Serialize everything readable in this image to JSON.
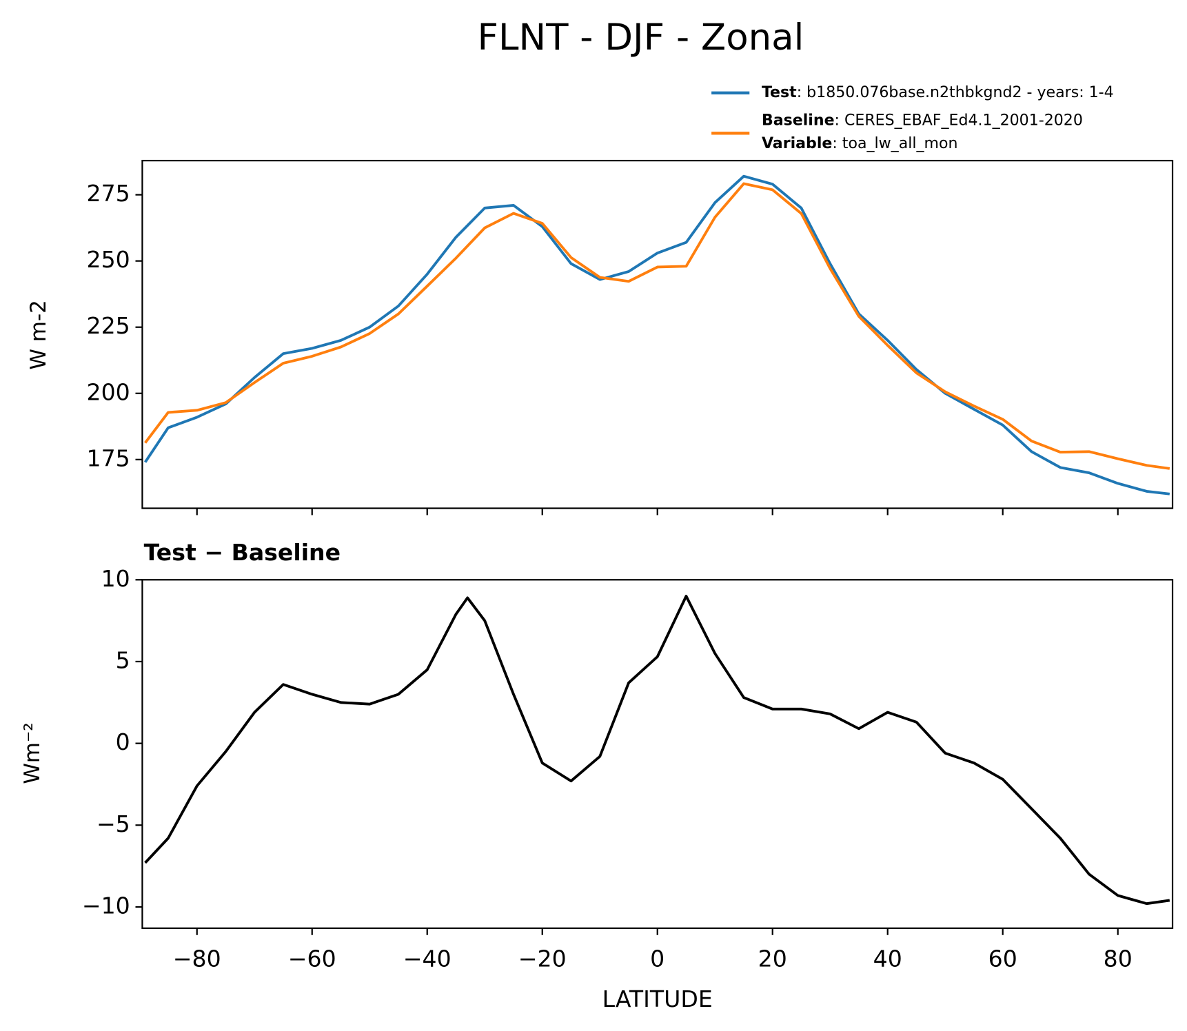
{
  "chart_data": [
    {
      "type": "line",
      "title": "FLNT - DJF - Zonal",
      "ylabel": "W m-2",
      "x": [
        -89,
        -85,
        -80,
        -75,
        -70,
        -65,
        -60,
        -55,
        -50,
        -45,
        -40,
        -35,
        -30,
        -25,
        -20,
        -15,
        -10,
        -5,
        0,
        5,
        10,
        15,
        20,
        25,
        30,
        35,
        40,
        45,
        50,
        55,
        60,
        65,
        70,
        75,
        80,
        85,
        89
      ],
      "series": [
        {
          "name": "Test",
          "legend_text": ": b1850.076base.n2thbkgnd2 - years: 1-4",
          "color": "#1f77b4",
          "values": [
            174,
            187,
            191,
            196,
            206,
            215,
            217,
            220,
            225,
            233,
            245,
            259,
            270,
            271,
            263,
            249,
            243,
            246,
            253,
            257,
            272,
            282,
            279,
            270,
            249,
            230,
            220,
            209,
            200,
            194,
            188,
            178,
            172,
            170,
            166,
            163,
            162
          ]
        },
        {
          "name": "Baseline",
          "legend_text": ": CERES_EBAF_Ed4.1_2001-2020",
          "legend_extra_label": "Variable",
          "legend_extra_text": ": toa_lw_all_mon",
          "color": "#ff7f0e",
          "values": [
            181.3,
            192.8,
            193.6,
            196.5,
            204.1,
            211.4,
            214,
            217.5,
            222.6,
            230,
            240.5,
            251.1,
            262.5,
            268,
            264.2,
            251.3,
            243.8,
            242.3,
            247.7,
            248,
            266.5,
            279.2,
            276.9,
            267.9,
            247.2,
            229.1,
            218.1,
            207.7,
            200.6,
            195.2,
            190.2,
            182,
            177.8,
            178,
            175.3,
            172.8,
            171.6
          ]
        }
      ],
      "xlim": [
        -89.5,
        89.5
      ],
      "xticks": [
        -80,
        -60,
        -40,
        -20,
        0,
        20,
        40,
        60,
        80
      ],
      "ylim": [
        156.6,
        287.9
      ],
      "yticks": [
        175,
        200,
        225,
        250,
        275
      ]
    },
    {
      "type": "line",
      "title": "Test − Baseline",
      "ylabel": "Wm⁻²",
      "xlabel": "LATITUDE",
      "color": "#000000",
      "x": [
        -89,
        -85,
        -80,
        -75,
        -70,
        -65,
        -60,
        -55,
        -50,
        -45,
        -40,
        -35,
        -33,
        -30,
        -25,
        -20,
        -15,
        -10,
        -5,
        0,
        5,
        10,
        15,
        20,
        25,
        30,
        35,
        40,
        45,
        50,
        55,
        60,
        65,
        70,
        75,
        80,
        85,
        89
      ],
      "values": [
        -7.3,
        -5.8,
        -2.6,
        -0.5,
        1.9,
        3.6,
        3.0,
        2.5,
        2.4,
        3.0,
        4.5,
        7.9,
        8.9,
        7.5,
        3.0,
        -1.2,
        -2.3,
        -0.8,
        3.7,
        5.3,
        9.0,
        5.5,
        2.8,
        2.1,
        2.1,
        1.8,
        0.9,
        1.9,
        1.3,
        -0.6,
        -1.2,
        -2.2,
        -4.0,
        -5.8,
        -8.0,
        -9.3,
        -9.8,
        -9.6
      ],
      "xlim": [
        -89.5,
        89.5
      ],
      "xticks": [
        {
          "value": -80,
          "label": "−80"
        },
        {
          "value": -60,
          "label": "−60"
        },
        {
          "value": -40,
          "label": "−40"
        },
        {
          "value": -20,
          "label": "−20"
        },
        0,
        20,
        40,
        60,
        80
      ],
      "ylim": [
        -11.3,
        10
      ],
      "yticks": [
        {
          "value": -10,
          "label": "−10"
        },
        {
          "value": -5,
          "label": "−5"
        },
        0,
        5,
        10
      ]
    }
  ]
}
